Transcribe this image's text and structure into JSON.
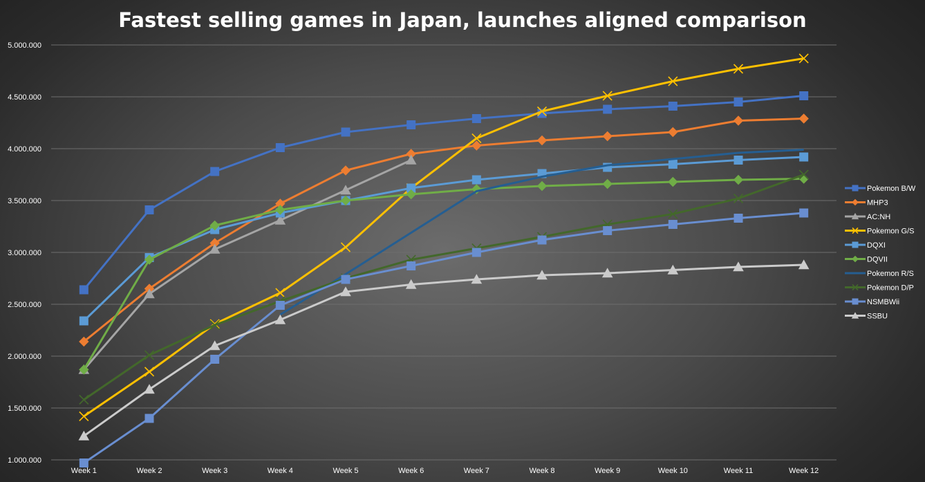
{
  "chart_data": {
    "type": "line",
    "title": "Fastest selling games in Japan, launches aligned comparison",
    "xlabel": "",
    "ylabel": "",
    "categories": [
      "Week 1",
      "Week 2",
      "Week 3",
      "Week 4",
      "Week 5",
      "Week 6",
      "Week 7",
      "Week 8",
      "Week 9",
      "Week 10",
      "Week 11",
      "Week 12"
    ],
    "ylim": [
      1000000,
      5000000
    ],
    "y_ticks": [
      1000000,
      1500000,
      2000000,
      2500000,
      3000000,
      3500000,
      4000000,
      4500000,
      5000000
    ],
    "y_tick_labels": [
      "1.000.000",
      "1.500.000",
      "2.000.000",
      "2.500.000",
      "3.000.000",
      "3.500.000",
      "4.000.000",
      "4.500.000",
      "5.000.000"
    ],
    "grid": true,
    "legend_position": "right",
    "series": [
      {
        "name": "Pokemon B/W",
        "color": "#4472c4",
        "marker": "square",
        "values": [
          2640000,
          3410000,
          3780000,
          4010000,
          4160000,
          4230000,
          4290000,
          4340000,
          4380000,
          4410000,
          4450000,
          4510000
        ]
      },
      {
        "name": "MHP3",
        "color": "#ed7d31",
        "marker": "diamond",
        "values": [
          2140000,
          2650000,
          3090000,
          3470000,
          3790000,
          3950000,
          4030000,
          4080000,
          4120000,
          4160000,
          4270000,
          4290000
        ]
      },
      {
        "name": "AC:NH",
        "color": "#a5a5a5",
        "marker": "triangle",
        "values": [
          1870000,
          2600000,
          3030000,
          3310000,
          3600000,
          3890000,
          null,
          null,
          null,
          null,
          null,
          null
        ]
      },
      {
        "name": "Pokemon G/S",
        "color": "#ffc000",
        "marker": "x",
        "values": [
          1420000,
          1850000,
          2310000,
          2610000,
          3050000,
          3620000,
          4100000,
          4360000,
          4510000,
          4650000,
          4770000,
          4870000
        ]
      },
      {
        "name": "DQXI",
        "color": "#5b9bd5",
        "marker": "square",
        "values": [
          2340000,
          2950000,
          3220000,
          3380000,
          3500000,
          3620000,
          3700000,
          3760000,
          3820000,
          3850000,
          3890000,
          3920000
        ]
      },
      {
        "name": "DQVII",
        "color": "#70ad47",
        "marker": "diamond",
        "values": [
          1870000,
          2930000,
          3260000,
          3410000,
          3500000,
          3560000,
          3610000,
          3640000,
          3660000,
          3680000,
          3700000,
          3710000
        ]
      },
      {
        "name": "Pokemon R/S",
        "color": "#255e91",
        "marker": "none",
        "values": [
          null,
          null,
          null,
          2400000,
          2790000,
          3190000,
          3590000,
          3730000,
          3840000,
          3900000,
          3960000,
          3990000
        ]
      },
      {
        "name": "Pokemon D/P",
        "color": "#43682b",
        "marker": "x",
        "values": [
          1580000,
          2010000,
          2300000,
          2530000,
          2750000,
          2930000,
          3040000,
          3150000,
          3270000,
          3370000,
          3520000,
          3750000
        ]
      },
      {
        "name": "NSMBWii",
        "color": "#698ed0",
        "marker": "square",
        "values": [
          970000,
          1400000,
          1970000,
          2490000,
          2740000,
          2870000,
          3000000,
          3120000,
          3210000,
          3270000,
          3330000,
          3380000
        ]
      },
      {
        "name": "SSBU",
        "color": "#cbcbcb",
        "marker": "triangle",
        "values": [
          1230000,
          1680000,
          2100000,
          2350000,
          2620000,
          2690000,
          2740000,
          2780000,
          2800000,
          2830000,
          2860000,
          2880000
        ]
      }
    ]
  }
}
